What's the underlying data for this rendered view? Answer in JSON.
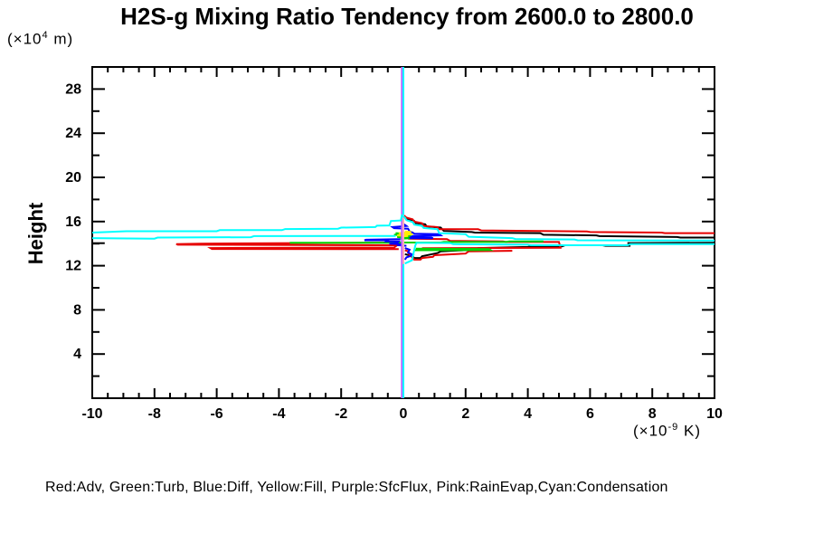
{
  "header": {
    "title": "H2S-g Mixing Ratio Tendency from 2600.0 to 2800.0"
  },
  "labels": {
    "y_axis_title": "Height",
    "y_unit": {
      "open": "(×10",
      "exp": "4",
      "close": " m)"
    },
    "x_unit": {
      "open": "(×10",
      "exp": "-9",
      "close": " K)"
    }
  },
  "legend": {
    "text": "Red:Adv, Green:Turb, Blue:Diff, Yellow:Fill, Purple:SfcFlux, Pink:RainEvap,Cyan:Condensation"
  },
  "colors": {
    "red": "#e60000",
    "green": "#00d400",
    "blue": "#0000ff",
    "yellow": "#ffee00",
    "purple": "#c060ff",
    "pink": "#ffaab8",
    "cyan": "#00ffff",
    "black": "#000000",
    "axis": "#000000",
    "background": "#ffffff"
  },
  "chart_data": {
    "type": "line",
    "title": "H2S-g Mixing Ratio Tendency from 2600.0 to 2800.0",
    "xlabel": "(×10-9 K)",
    "ylabel": "Height (×104 m)",
    "xlim": [
      -10,
      10
    ],
    "ylim": [
      0,
      30
    ],
    "grid": false,
    "legend_position": "bottom",
    "x_ticks": {
      "major": [
        -10,
        -8,
        -6,
        -4,
        -2,
        0,
        2,
        4,
        6,
        8,
        10
      ],
      "labels": [
        "-10",
        "-8",
        "-6",
        "-4",
        "-2",
        "0",
        "2",
        "4",
        "6",
        "8",
        "10"
      ],
      "minor_step": 0.5
    },
    "y_ticks": {
      "major": [
        4,
        8,
        12,
        16,
        20,
        24,
        28
      ],
      "labels": [
        "4",
        "8",
        "12",
        "16",
        "20",
        "24",
        "28"
      ],
      "minor_step": 2
    },
    "series": [
      {
        "name": "total-upper",
        "color": "black",
        "points": [
          [
            0.05,
            16.4
          ],
          [
            0.1,
            16.2
          ],
          [
            0.35,
            16.05
          ],
          [
            0.4,
            15.85
          ],
          [
            0.7,
            15.75
          ],
          [
            0.75,
            15.55
          ],
          [
            1.2,
            15.45
          ],
          [
            1.3,
            15.15
          ],
          [
            2.2,
            15.05
          ],
          [
            2.3,
            15.0
          ],
          [
            4.4,
            14.95
          ],
          [
            4.5,
            14.8
          ],
          [
            6.2,
            14.75
          ],
          [
            6.3,
            14.68
          ],
          [
            8.8,
            14.6
          ],
          [
            8.9,
            14.55
          ],
          [
            10,
            14.55
          ]
        ]
      },
      {
        "name": "total-left-edge",
        "color": "black",
        "points": [
          [
            -10,
            14.04
          ],
          [
            -9.6,
            14.04
          ]
        ]
      },
      {
        "name": "total-right",
        "color": "black",
        "points": [
          [
            7.2,
            14.05
          ],
          [
            10,
            14.08
          ]
        ]
      },
      {
        "name": "total-lower",
        "color": "black",
        "points": [
          [
            0.05,
            13.05
          ],
          [
            0.3,
            12.85
          ],
          [
            0.35,
            12.7
          ],
          [
            0.55,
            12.7
          ],
          [
            0.6,
            12.85
          ],
          [
            1.1,
            13.15
          ],
          [
            1.2,
            13.3
          ],
          [
            2.3,
            13.45
          ],
          [
            2.4,
            13.6
          ],
          [
            4.0,
            13.7
          ],
          [
            4.1,
            13.75
          ],
          [
            5.1,
            13.75
          ],
          [
            5.2,
            13.85
          ],
          [
            6.4,
            13.85
          ],
          [
            6.5,
            13.8
          ],
          [
            7.3,
            13.8
          ]
        ]
      },
      {
        "name": "adv-upper",
        "color": "red",
        "points": [
          [
            0.02,
            16.55
          ],
          [
            0.1,
            16.35
          ],
          [
            0.3,
            16.2
          ],
          [
            0.35,
            16.0
          ],
          [
            0.6,
            15.85
          ],
          [
            0.65,
            15.6
          ],
          [
            1.1,
            15.5
          ],
          [
            1.15,
            15.3
          ],
          [
            2.4,
            15.3
          ],
          [
            2.5,
            15.2
          ],
          [
            5.9,
            15.1
          ],
          [
            6.0,
            15.05
          ],
          [
            8.3,
            15.0
          ],
          [
            8.4,
            14.95
          ],
          [
            10,
            14.95
          ]
        ]
      },
      {
        "name": "adv-right-spike",
        "color": "red",
        "points": [
          [
            0.15,
            14.45
          ],
          [
            1.4,
            14.4
          ],
          [
            1.5,
            14.25
          ],
          [
            3.2,
            14.2
          ],
          [
            3.3,
            14.15
          ],
          [
            5.0,
            14.15
          ],
          [
            5.05,
            13.62
          ],
          [
            2.0,
            13.6
          ],
          [
            0.6,
            13.58
          ]
        ]
      },
      {
        "name": "adv-left-spikes",
        "color": "red",
        "points": [
          [
            -0.05,
            14.1
          ],
          [
            -6.5,
            14.0
          ],
          [
            -7.3,
            13.96
          ],
          [
            -7.25,
            13.9
          ],
          [
            -0.2,
            13.85
          ],
          [
            -0.3,
            13.65
          ],
          [
            -6.2,
            13.6
          ],
          [
            -6.15,
            13.52
          ],
          [
            -0.15,
            13.5
          ]
        ]
      },
      {
        "name": "adv-lower",
        "color": "red",
        "points": [
          [
            0.05,
            13.4
          ],
          [
            0.15,
            13.3
          ],
          [
            0.2,
            12.9
          ],
          [
            0.3,
            12.75
          ],
          [
            0.35,
            12.55
          ],
          [
            0.55,
            12.55
          ],
          [
            0.6,
            12.7
          ],
          [
            0.95,
            12.8
          ],
          [
            1.0,
            12.95
          ],
          [
            2.0,
            13.1
          ],
          [
            2.1,
            13.3
          ],
          [
            3.5,
            13.35
          ]
        ]
      },
      {
        "name": "turb-mid",
        "color": "green",
        "points": [
          [
            -3.65,
            14.07
          ],
          [
            -0.3,
            14.07
          ],
          [
            -0.2,
            14.1
          ],
          [
            1.2,
            14.1
          ],
          [
            1.3,
            14.15
          ],
          [
            3.3,
            14.15
          ],
          [
            3.4,
            14.2
          ],
          [
            4.5,
            14.2
          ]
        ]
      },
      {
        "name": "turb-center-zigzag",
        "color": "green",
        "points": [
          [
            -0.25,
            14.95
          ],
          [
            0.2,
            14.9
          ],
          [
            -0.3,
            14.8
          ],
          [
            0.25,
            14.7
          ],
          [
            -0.2,
            14.6
          ],
          [
            0.3,
            14.5
          ],
          [
            -0.1,
            14.45
          ]
        ]
      },
      {
        "name": "turb-right-spike",
        "color": "green",
        "points": [
          [
            0.4,
            13.55
          ],
          [
            2.75,
            13.5
          ],
          [
            2.8,
            13.42
          ],
          [
            0.35,
            13.4
          ]
        ]
      },
      {
        "name": "diff-upper",
        "color": "blue",
        "points": [
          [
            0.02,
            15.75
          ],
          [
            0.1,
            15.6
          ],
          [
            -0.35,
            15.5
          ],
          [
            -0.3,
            15.4
          ],
          [
            0.15,
            15.35
          ],
          [
            0.2,
            15.1
          ],
          [
            0.3,
            15.0
          ],
          [
            0.35,
            14.9
          ],
          [
            1.15,
            14.85
          ],
          [
            1.2,
            14.75
          ],
          [
            0.3,
            14.7
          ],
          [
            0.25,
            14.6
          ],
          [
            0.9,
            14.55
          ],
          [
            0.95,
            14.48
          ],
          [
            0.2,
            14.5
          ]
        ]
      },
      {
        "name": "diff-left-zigzag",
        "color": "blue",
        "points": [
          [
            -0.1,
            14.4
          ],
          [
            -1.2,
            14.35
          ],
          [
            -1.25,
            14.3
          ],
          [
            -0.5,
            14.3
          ],
          [
            -0.55,
            14.2
          ],
          [
            -0.15,
            14.2
          ],
          [
            -0.2,
            14.05
          ],
          [
            -0.45,
            14.0
          ],
          [
            -0.1,
            13.95
          ],
          [
            -0.15,
            13.85
          ],
          [
            0.1,
            13.8
          ]
        ]
      },
      {
        "name": "diff-lower",
        "color": "blue",
        "points": [
          [
            0.05,
            13.6
          ],
          [
            0.2,
            13.45
          ],
          [
            0.15,
            13.2
          ],
          [
            0.3,
            13.0
          ],
          [
            0.2,
            12.85
          ],
          [
            0.1,
            12.75
          ],
          [
            0.05,
            12.55
          ]
        ]
      },
      {
        "name": "fill-zigzag",
        "color": "yellow",
        "points": [
          [
            0.05,
            15.1
          ],
          [
            0.25,
            15.05
          ],
          [
            -0.15,
            14.95
          ],
          [
            0.3,
            14.85
          ],
          [
            -0.2,
            14.75
          ],
          [
            0.15,
            14.7
          ],
          [
            -0.05,
            14.65
          ]
        ]
      },
      {
        "name": "sfcflux-vertical",
        "color": "purple",
        "points": [
          [
            -0.05,
            30
          ],
          [
            -0.05,
            0
          ]
        ]
      },
      {
        "name": "rainevap-vertical",
        "color": "pink",
        "points": [
          [
            0,
            30
          ],
          [
            0,
            0
          ]
        ]
      },
      {
        "name": "condensation-upper",
        "color": "cyan",
        "points": [
          [
            -10,
            15.0
          ],
          [
            -8.9,
            15.12
          ],
          [
            -6.0,
            15.12
          ],
          [
            -5.9,
            15.22
          ],
          [
            -3.9,
            15.22
          ],
          [
            -3.8,
            15.32
          ],
          [
            -2.1,
            15.35
          ],
          [
            -2.0,
            15.45
          ],
          [
            -0.9,
            15.5
          ],
          [
            -0.85,
            15.62
          ],
          [
            -0.45,
            15.65
          ],
          [
            -0.4,
            16.05
          ],
          [
            -0.08,
            16.1
          ],
          [
            -0.05,
            16.55
          ],
          [
            0.05,
            16.35
          ],
          [
            0.1,
            16.12
          ],
          [
            0.3,
            15.95
          ],
          [
            0.35,
            15.72
          ],
          [
            0.6,
            15.6
          ],
          [
            0.65,
            15.42
          ],
          [
            1.1,
            15.3
          ],
          [
            1.15,
            14.95
          ],
          [
            2.0,
            14.85
          ],
          [
            2.1,
            14.62
          ],
          [
            3.5,
            14.5
          ],
          [
            3.6,
            14.42
          ],
          [
            5.5,
            14.38
          ],
          [
            5.6,
            14.3
          ],
          [
            10,
            14.28
          ]
        ]
      },
      {
        "name": "condensation-second",
        "color": "cyan",
        "points": [
          [
            -10,
            14.5
          ],
          [
            -8.0,
            14.45
          ],
          [
            -7.9,
            14.55
          ],
          [
            -4.9,
            14.58
          ],
          [
            -4.8,
            14.68
          ],
          [
            -0.25,
            14.7
          ]
        ]
      },
      {
        "name": "condensation-lower",
        "color": "cyan",
        "points": [
          [
            0.05,
            12.2
          ],
          [
            0.28,
            12.5
          ],
          [
            0.33,
            13.2
          ],
          [
            0.38,
            13.8
          ],
          [
            0.42,
            14.08
          ],
          [
            1.5,
            14.05
          ],
          [
            1.6,
            13.95
          ],
          [
            4.0,
            13.9
          ],
          [
            4.1,
            13.85
          ],
          [
            7.2,
            13.85
          ],
          [
            7.3,
            13.95
          ],
          [
            10,
            13.95
          ]
        ]
      },
      {
        "name": "condensation-vert-top",
        "color": "cyan",
        "points": [
          [
            0,
            30
          ],
          [
            0,
            16.6
          ]
        ]
      },
      {
        "name": "condensation-vert-bottom",
        "color": "cyan",
        "points": [
          [
            0,
            12.15
          ],
          [
            0,
            0
          ]
        ]
      }
    ]
  }
}
